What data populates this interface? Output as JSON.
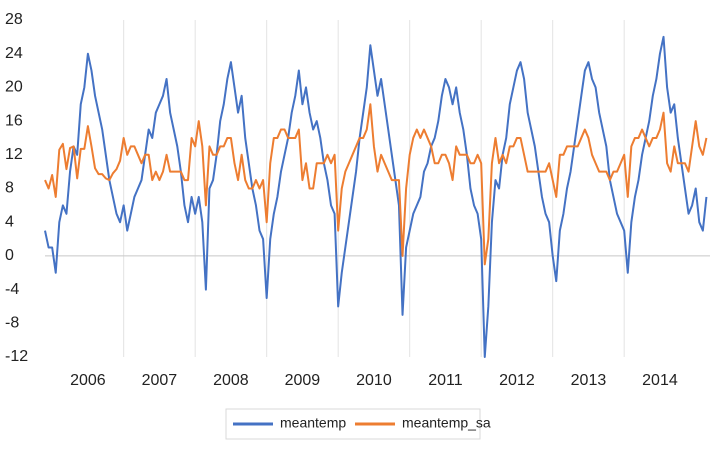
{
  "chart_data": {
    "type": "line",
    "x": [
      2005.9,
      2005.95,
      2006,
      2006.05,
      2006.1,
      2006.15,
      2006.2,
      2006.25,
      2006.3,
      2006.35,
      2006.4,
      2006.45,
      2006.5,
      2006.55,
      2006.6,
      2006.65,
      2006.7,
      2006.75,
      2006.8,
      2006.85,
      2006.9,
      2006.95,
      2007,
      2007.05,
      2007.1,
      2007.15,
      2007.2,
      2007.25,
      2007.3,
      2007.35,
      2007.4,
      2007.45,
      2007.5,
      2007.55,
      2007.6,
      2007.65,
      2007.7,
      2007.75,
      2007.8,
      2007.85,
      2007.9,
      2007.95,
      2008,
      2008.05,
      2008.1,
      2008.15,
      2008.2,
      2008.25,
      2008.3,
      2008.35,
      2008.4,
      2008.45,
      2008.5,
      2008.55,
      2008.6,
      2008.65,
      2008.7,
      2008.75,
      2008.8,
      2008.85,
      2008.9,
      2008.95,
      2009,
      2009.05,
      2009.1,
      2009.15,
      2009.2,
      2009.25,
      2009.3,
      2009.35,
      2009.4,
      2009.45,
      2009.5,
      2009.55,
      2009.6,
      2009.65,
      2009.7,
      2009.75,
      2009.8,
      2009.85,
      2009.9,
      2009.95,
      2010,
      2010.05,
      2010.1,
      2010.15,
      2010.2,
      2010.25,
      2010.3,
      2010.35,
      2010.4,
      2010.45,
      2010.5,
      2010.55,
      2010.6,
      2010.65,
      2010.7,
      2010.75,
      2010.8,
      2010.85,
      2010.9,
      2010.95,
      2011,
      2011.05,
      2011.1,
      2011.15,
      2011.2,
      2011.25,
      2011.3,
      2011.35,
      2011.4,
      2011.45,
      2011.5,
      2011.55,
      2011.6,
      2011.65,
      2011.7,
      2011.75,
      2011.8,
      2011.85,
      2011.9,
      2011.95,
      2012,
      2012.05,
      2012.1,
      2012.15,
      2012.2,
      2012.25,
      2012.3,
      2012.35,
      2012.4,
      2012.45,
      2012.5,
      2012.55,
      2012.6,
      2012.65,
      2012.7,
      2012.75,
      2012.8,
      2012.85,
      2012.9,
      2012.95,
      2013,
      2013.05,
      2013.1,
      2013.15,
      2013.2,
      2013.25,
      2013.3,
      2013.35,
      2013.4,
      2013.45,
      2013.5,
      2013.55,
      2013.6,
      2013.65,
      2013.7,
      2013.75,
      2013.8,
      2013.85,
      2013.9,
      2013.95,
      2014,
      2014.05,
      2014.1,
      2014.15,
      2014.2,
      2014.25,
      2014.3,
      2014.35,
      2014.4,
      2014.45,
      2014.5,
      2014.55,
      2014.6,
      2014.65,
      2014.7,
      2014.75,
      2014.8,
      2014.85,
      2014.9,
      2014.95,
      2015,
      2015.05,
      2015.1,
      2015.15
    ],
    "series": [
      {
        "name": "meantemp",
        "color": "#4472c4",
        "values": [
          3,
          1,
          1,
          -2,
          4,
          6,
          5,
          10,
          13,
          12,
          18,
          20,
          24,
          22,
          19,
          17,
          15,
          12,
          9,
          7,
          5,
          4,
          6,
          3,
          5,
          7,
          8,
          9,
          12,
          15,
          14,
          17,
          18,
          19,
          21,
          17,
          15,
          13,
          10,
          6,
          4,
          7,
          5,
          7,
          4,
          -4,
          8,
          9,
          12,
          16,
          18,
          21,
          23,
          20,
          17,
          19,
          14,
          11,
          8,
          6,
          3,
          2,
          -5,
          2,
          5,
          7,
          10,
          12,
          14,
          17,
          19,
          22,
          18,
          20,
          17,
          15,
          16,
          14,
          11,
          9,
          6,
          5,
          -6,
          -2,
          1,
          4,
          7,
          10,
          14,
          17,
          20,
          25,
          22,
          19,
          21,
          18,
          15,
          12,
          9,
          6,
          -7,
          1,
          3,
          5,
          6,
          7,
          10,
          11,
          13,
          14,
          16,
          19,
          21,
          20,
          18,
          20,
          17,
          15,
          12,
          8,
          6,
          5,
          2,
          -12,
          -6,
          4,
          9,
          8,
          12,
          14,
          18,
          20,
          22,
          23,
          21,
          17,
          15,
          13,
          10,
          7,
          5,
          4,
          0,
          -3,
          3,
          5,
          8,
          10,
          13,
          16,
          19,
          22,
          23,
          21,
          20,
          17,
          15,
          13,
          9,
          7,
          5,
          4,
          3,
          -2,
          4,
          7,
          9,
          12,
          14,
          16,
          19,
          21,
          24,
          26,
          20,
          17,
          18,
          14,
          11,
          8,
          5,
          6,
          8,
          4,
          3,
          7
        ]
      },
      {
        "name": "meantemp_sa",
        "color": "#ed7d31",
        "values": [
          9,
          8,
          9.6,
          7,
          12.6,
          13.3,
          10.3,
          12.8,
          13,
          9.2,
          12.7,
          12.7,
          15.4,
          13,
          10.4,
          9.7,
          9.7,
          9.2,
          9,
          9.8,
          10.3,
          11.3,
          14,
          12,
          13,
          13,
          12,
          11,
          12,
          12,
          9,
          10,
          9,
          10,
          12,
          10,
          10,
          10,
          10,
          9,
          9,
          14,
          13,
          16,
          13,
          6,
          13,
          12,
          12,
          13,
          13,
          14,
          14,
          11,
          9,
          12,
          9,
          8,
          8,
          9,
          8,
          9,
          4,
          11,
          14,
          14,
          15,
          15,
          14,
          14,
          14,
          15,
          9,
          11,
          8,
          8,
          11,
          11,
          11,
          12,
          11,
          12,
          3,
          8,
          10,
          11,
          12,
          13,
          14,
          14,
          15,
          18,
          13,
          10,
          12,
          11,
          10,
          9,
          9,
          9,
          0,
          8,
          12,
          14,
          15,
          14,
          15,
          14,
          13,
          11,
          11,
          12,
          12,
          11,
          9,
          13,
          12,
          12,
          12,
          11,
          11,
          12,
          11,
          -1,
          2,
          11,
          14,
          11,
          12,
          11,
          13,
          13,
          14,
          14,
          12,
          10,
          10,
          10,
          10,
          10,
          10,
          11,
          9,
          7,
          12,
          12,
          13,
          13,
          13,
          13,
          14,
          15,
          14,
          12,
          11,
          10,
          10,
          10,
          9,
          10,
          10,
          11,
          12,
          7,
          13,
          14,
          14,
          15,
          14,
          13,
          14,
          14,
          15,
          17,
          11,
          10,
          13,
          11,
          11,
          11,
          10,
          13,
          16,
          13,
          12,
          14
        ]
      }
    ],
    "xlim": [
      2005.9,
      2015.2
    ],
    "xticks": [
      {
        "value": 2006.5,
        "label": "2006"
      },
      {
        "value": 2007.5,
        "label": "2007"
      },
      {
        "value": 2008.5,
        "label": "2008"
      },
      {
        "value": 2009.5,
        "label": "2009"
      },
      {
        "value": 2010.5,
        "label": "2010"
      },
      {
        "value": 2011.5,
        "label": "2011"
      },
      {
        "value": 2012.5,
        "label": "2012"
      },
      {
        "value": 2013.5,
        "label": "2013"
      },
      {
        "value": 2014.5,
        "label": "2014"
      }
    ],
    "xgrid": [
      2007,
      2008,
      2009,
      2010,
      2011,
      2012,
      2013,
      2014
    ],
    "ylim": [
      -12,
      28
    ],
    "yticks": [
      28,
      24,
      20,
      16,
      12,
      8,
      4,
      0,
      -4,
      -8,
      -12
    ],
    "legend": "bottom"
  }
}
